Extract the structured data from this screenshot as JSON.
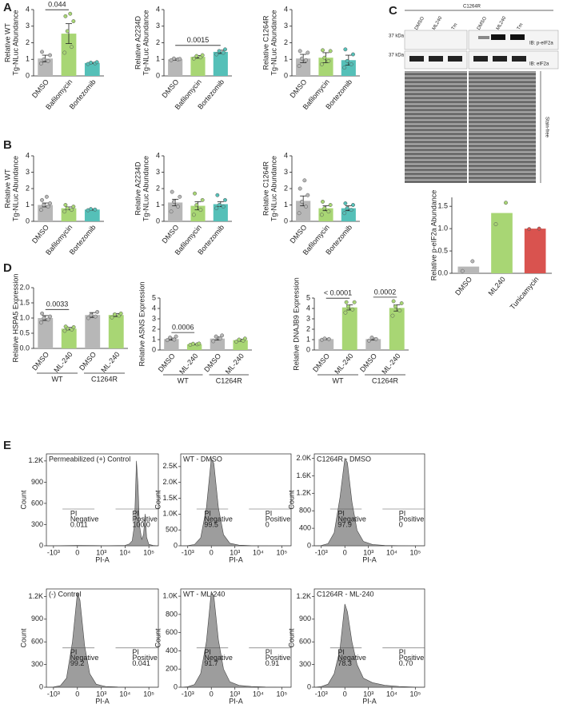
{
  "panel_labels": [
    "A",
    "B",
    "C",
    "D",
    "E"
  ],
  "blot": {
    "title": "C1264R",
    "lanes": [
      "DMSO",
      "ML240",
      "Tm",
      "DMSO",
      "ML240",
      "Tm"
    ],
    "markers": [
      "37 kDa",
      "37 kDa"
    ],
    "blots": [
      "IB: p-eIF2a",
      "IB: eIF2a"
    ],
    "stain": "Stain-free"
  },
  "chart_data": [
    {
      "type": "bar",
      "ylabel": [
        "Relative WT",
        "Tg-NLuc Abundance"
      ],
      "categories": [
        "DMSO",
        "Bafilomycin",
        "Bortezomib"
      ],
      "colors": [
        "#b7b7b7",
        "#a8d674",
        "#55c0b8"
      ],
      "values": [
        1.05,
        2.55,
        0.78
      ],
      "errors": [
        0.2,
        0.6,
        0.04
      ],
      "points": [
        [
          0.75,
          0.9,
          1.0,
          1.25,
          1.45
        ],
        [
          1.4,
          1.75,
          2.7,
          3.3,
          3.6,
          3.75
        ],
        [
          0.72,
          0.76,
          0.8,
          0.83
        ]
      ],
      "ylim": [
        0,
        4
      ],
      "yticks": [
        0,
        1,
        2,
        3,
        4
      ],
      "significance": [
        {
          "pair": [
            0,
            1
          ],
          "label": "0.044"
        }
      ]
    },
    {
      "type": "bar",
      "ylabel": [
        "Relative A2234D",
        "Tg-NLuc Abundance"
      ],
      "categories": [
        "DMSO",
        "Bafilomycin",
        "Bortezomib"
      ],
      "colors": [
        "#b7b7b7",
        "#a8d674",
        "#55c0b8"
      ],
      "values": [
        1.0,
        1.15,
        1.45
      ],
      "errors": [
        0.05,
        0.08,
        0.1
      ],
      "points": [
        [
          0.95,
          1.0,
          1.05,
          1.02
        ],
        [
          1.05,
          1.12,
          1.2,
          1.25
        ],
        [
          1.3,
          1.4,
          1.5,
          1.6
        ]
      ],
      "ylim": [
        0,
        4
      ],
      "yticks": [
        0,
        1,
        2,
        3,
        4
      ],
      "significance": [
        {
          "pair": [
            0,
            2
          ],
          "label": "0.0015"
        }
      ]
    },
    {
      "type": "bar",
      "ylabel": [
        "Relative C1264R",
        "Tg-NLuc Abundance"
      ],
      "categories": [
        "DMSO",
        "Bafilomycin",
        "Bortezomib"
      ],
      "colors": [
        "#b7b7b7",
        "#a8d674",
        "#55c0b8"
      ],
      "values": [
        1.05,
        1.1,
        0.95
      ],
      "errors": [
        0.25,
        0.3,
        0.3
      ],
      "points": [
        [
          0.6,
          0.95,
          1.05,
          1.4,
          1.5
        ],
        [
          0.7,
          0.9,
          1.1,
          1.5,
          1.55
        ],
        [
          0.5,
          0.7,
          0.9,
          1.3,
          1.6
        ]
      ],
      "ylim": [
        0,
        4
      ],
      "yticks": [
        0,
        1,
        2,
        3,
        4
      ]
    },
    {
      "type": "bar",
      "ylabel": [
        "Relative WT",
        "Tg-NLuc Abundance"
      ],
      "categories": [
        "DMSO",
        "Bafilomycin",
        "Bortezomib"
      ],
      "colors": [
        "#b7b7b7",
        "#a8d674",
        "#55c0b8"
      ],
      "values": [
        1.0,
        0.8,
        0.72
      ],
      "errors": [
        0.12,
        0.08,
        0.04
      ],
      "points": [
        [
          0.7,
          0.9,
          1.0,
          1.1,
          1.3,
          1.5
        ],
        [
          0.6,
          0.7,
          0.8,
          0.9,
          1.0
        ],
        [
          0.68,
          0.72,
          0.75
        ]
      ],
      "ylim": [
        0,
        4
      ],
      "yticks": [
        0,
        1,
        2,
        3,
        4
      ]
    },
    {
      "type": "bar",
      "ylabel": [
        "Relative A2234D",
        "Tg-NLuc Abundance"
      ],
      "categories": [
        "DMSO",
        "Bafilomycin",
        "Bortezomib"
      ],
      "colors": [
        "#b7b7b7",
        "#a8d674",
        "#55c0b8"
      ],
      "values": [
        1.15,
        0.95,
        1.05
      ],
      "errors": [
        0.2,
        0.25,
        0.15
      ],
      "points": [
        [
          0.6,
          0.9,
          1.2,
          1.5,
          1.8
        ],
        [
          0.4,
          0.7,
          1.0,
          1.3,
          1.7
        ],
        [
          0.8,
          0.9,
          1.0,
          1.3,
          1.6
        ]
      ],
      "ylim": [
        0,
        4
      ],
      "yticks": [
        0,
        1,
        2,
        3,
        4
      ]
    },
    {
      "type": "bar",
      "ylabel": [
        "Relative C1264R",
        "Tg-NLuc Abundance"
      ],
      "categories": [
        "DMSO",
        "Bafilomycin",
        "Bortezomib"
      ],
      "colors": [
        "#b7b7b7",
        "#a8d674",
        "#55c0b8"
      ],
      "values": [
        1.25,
        0.8,
        0.8
      ],
      "errors": [
        0.3,
        0.15,
        0.15
      ],
      "points": [
        [
          0.5,
          0.9,
          1.2,
          1.6,
          2.0,
          2.5
        ],
        [
          0.4,
          0.6,
          0.8,
          1.0,
          1.2
        ],
        [
          0.5,
          0.7,
          0.8,
          1.0,
          1.1
        ]
      ],
      "ylim": [
        0,
        4
      ],
      "yticks": [
        0,
        1,
        2,
        3,
        4
      ]
    },
    {
      "type": "bar",
      "ylabel": [
        "Relative p-eIF2a Abundance"
      ],
      "categories": [
        "DMSO",
        "ML240",
        "Tunicamycin"
      ],
      "colors": [
        "#b7b7b7",
        "#a8d674",
        "#d9534f"
      ],
      "values": [
        0.15,
        1.35,
        1.0
      ],
      "points": [
        [
          0.05,
          0.27
        ],
        [
          1.1,
          1.58
        ],
        [
          0.99,
          1.0
        ]
      ],
      "ylim": [
        0,
        1.7
      ],
      "yticks": [
        {
          "value": 0,
          "label": "0.0"
        },
        0.5,
        {
          "value": 1,
          "label": "1.0"
        },
        1.5
      ]
    },
    {
      "type": "bar",
      "ylabel": [
        "Relative HSPA5 Expression"
      ],
      "categories": [
        "DMSO",
        "ML-240",
        "DMSO",
        "ML-240"
      ],
      "groups": [
        "WT",
        "C1264R"
      ],
      "colors": [
        "#b7b7b7",
        "#a8d674",
        "#b7b7b7",
        "#a8d674"
      ],
      "values": [
        1.0,
        0.65,
        1.1,
        1.1
      ],
      "errors": [
        0.08,
        0.04,
        0.08,
        0.05
      ],
      "points": [
        [
          0.85,
          0.95,
          1.0,
          1.05,
          1.15
        ],
        [
          0.58,
          0.62,
          0.66,
          0.7,
          0.72
        ],
        [
          1.0,
          1.05,
          1.1,
          1.2
        ],
        [
          1.02,
          1.08,
          1.12,
          1.15
        ]
      ],
      "ylim": [
        0,
        2
      ],
      "yticks": [
        {
          "value": 0,
          "label": "0.0"
        },
        0.5,
        {
          "value": 1,
          "label": "1.0"
        },
        1.5,
        {
          "value": 2,
          "label": "2.0"
        }
      ],
      "significance": [
        {
          "pair": [
            0,
            1
          ],
          "label": "0.0033"
        }
      ]
    },
    {
      "type": "bar",
      "ylabel": [
        "Relative ASNS Expression"
      ],
      "categories": [
        "DMSO",
        "ML-240",
        "DMSO",
        "ML-240"
      ],
      "groups": [
        "WT",
        "C1264R"
      ],
      "colors": [
        "#b7b7b7",
        "#a8d674",
        "#b7b7b7",
        "#a8d674"
      ],
      "values": [
        1.05,
        0.55,
        1.1,
        0.95
      ],
      "errors": [
        0.1,
        0.05,
        0.15,
        0.1
      ],
      "points": [
        [
          0.95,
          1.0,
          1.2,
          1.3
        ],
        [
          0.5,
          0.55,
          0.6,
          0.62
        ],
        [
          0.85,
          1.1,
          1.3,
          1.4
        ],
        [
          0.8,
          0.9,
          1.0,
          1.1
        ]
      ],
      "ylim": [
        0,
        5
      ],
      "yticks": [
        0,
        1,
        2,
        3,
        4,
        5
      ],
      "significance": [
        {
          "pair": [
            0,
            1
          ],
          "label": "0.0006"
        }
      ]
    },
    {
      "type": "bar",
      "ylabel": [
        "Relative DNAJB9 Expression"
      ],
      "categories": [
        "DMSO",
        "ML-240",
        "DMSO",
        "ML-240"
      ],
      "groups": [
        "WT",
        "C1264R"
      ],
      "colors": [
        "#b7b7b7",
        "#a8d674",
        "#b7b7b7",
        "#a8d674"
      ],
      "values": [
        1.05,
        4.1,
        1.05,
        4.05
      ],
      "errors": [
        0.05,
        0.25,
        0.1,
        0.3
      ],
      "points": [
        [
          0.98,
          1.05,
          1.1
        ],
        [
          3.6,
          3.9,
          4.2,
          4.6,
          4.6
        ],
        [
          0.9,
          1.05,
          1.2
        ],
        [
          3.3,
          3.8,
          4.2,
          4.5,
          4.7
        ]
      ],
      "ylim": [
        0,
        5
      ],
      "yticks": [
        0,
        1,
        2,
        3,
        4,
        5
      ],
      "significance": [
        {
          "pair": [
            0,
            1
          ],
          "label": "< 0.0001"
        },
        {
          "pair": [
            2,
            3
          ],
          "label": "0.0002"
        }
      ]
    },
    {
      "type": "area",
      "title": "Permeabilized (+) Control",
      "xlabel": "PI-A",
      "ylabel": "Count",
      "xscale": "biexponential",
      "color": "#8c8c8c",
      "x": [
        -2000,
        -500,
        0,
        500,
        2000,
        5000,
        10000,
        15000,
        20000,
        25000,
        30000,
        35000,
        40000,
        50000,
        60000,
        70000,
        80000,
        100000,
        150000,
        250000
      ],
      "values": [
        0,
        2,
        6,
        3,
        2,
        3,
        6,
        25,
        70,
        300,
        1200,
        850,
        300,
        90,
        160,
        450,
        120,
        20,
        4,
        0
      ],
      "xlim": [
        -2000,
        250000
      ],
      "xticks": [
        {
          "value": -1000,
          "label": "-10³"
        },
        0,
        {
          "value": 1000,
          "label": "10³"
        },
        {
          "value": 10000,
          "label": "10⁴"
        },
        {
          "value": 100000,
          "label": "10⁵"
        }
      ],
      "ylim": [
        0,
        1300
      ],
      "yticks": [
        0,
        300,
        600,
        900,
        {
          "value": 1200,
          "label": "1.2K"
        }
      ],
      "gates": [
        {
          "name": [
            "PI",
            "Negative"
          ],
          "value": 0.011
        },
        {
          "name": [
            "PI",
            "Positive"
          ],
          "value": 100,
          "value_label": "100.0"
        }
      ]
    },
    {
      "type": "area",
      "title": "WT - DMSO",
      "xlabel": "PI-A",
      "ylabel": "Count",
      "xscale": "biexponential",
      "color": "#8c8c8c",
      "x": [
        -2000,
        -1000,
        -500,
        -250,
        -100,
        0,
        50,
        150,
        300,
        600,
        1500,
        5000,
        20000,
        100000,
        250000
      ],
      "values": [
        0,
        5,
        40,
        250,
        1200,
        2750,
        2600,
        1200,
        350,
        80,
        20,
        5,
        2,
        0,
        0
      ],
      "xlim": [
        -2000,
        250000
      ],
      "xticks": [
        {
          "value": -1000,
          "label": "-10³"
        },
        0,
        {
          "value": 1000,
          "label": "10³"
        },
        {
          "value": 10000,
          "label": "10⁴"
        },
        {
          "value": 100000,
          "label": "10⁵"
        }
      ],
      "ylim": [
        0,
        2900
      ],
      "yticks": [
        0,
        500,
        {
          "value": 1000,
          "label": "1.0K"
        },
        {
          "value": 1500,
          "label": "1.5K"
        },
        {
          "value": 2000,
          "label": "2.0K"
        },
        {
          "value": 2500,
          "label": "2.5K"
        }
      ],
      "gates": [
        {
          "name": [
            "PI",
            "Negative"
          ],
          "value": 99.5
        },
        {
          "name": [
            "PI",
            "Positive"
          ],
          "value": 0
        }
      ]
    },
    {
      "type": "area",
      "title": "C1264R - DMSO",
      "xlabel": "PI-A",
      "ylabel": "Count",
      "xscale": "biexponential",
      "color": "#8c8c8c",
      "x": [
        -2000,
        -1000,
        -500,
        -250,
        -100,
        0,
        50,
        150,
        300,
        600,
        1500,
        5000,
        20000,
        100000,
        250000
      ],
      "values": [
        0,
        5,
        50,
        300,
        1100,
        2000,
        1900,
        1000,
        350,
        100,
        30,
        8,
        3,
        0,
        0
      ],
      "xlim": [
        -2000,
        250000
      ],
      "xticks": [
        {
          "value": -1000,
          "label": "-10³"
        },
        0,
        {
          "value": 1000,
          "label": "10³"
        },
        {
          "value": 10000,
          "label": "10⁴"
        },
        {
          "value": 100000,
          "label": "10⁵"
        }
      ],
      "ylim": [
        0,
        2100
      ],
      "yticks": [
        0,
        400,
        800,
        {
          "value": 1200,
          "label": "1.2K"
        },
        {
          "value": 1600,
          "label": "1.6K"
        },
        {
          "value": 2000,
          "label": "2.0K"
        }
      ],
      "gates": [
        {
          "name": [
            "PI",
            "Negative"
          ],
          "value": 97.9
        },
        {
          "name": [
            "PI",
            "Positive"
          ],
          "value": 0
        }
      ]
    },
    {
      "type": "area",
      "title": "(-) Control",
      "xlabel": "PI-A",
      "ylabel": "Count",
      "xscale": "biexponential",
      "color": "#8c8c8c",
      "x": [
        -2000,
        -1000,
        -500,
        -250,
        -100,
        0,
        50,
        150,
        300,
        600,
        1500,
        5000,
        20000,
        100000,
        250000
      ],
      "values": [
        0,
        3,
        20,
        120,
        600,
        1250,
        1150,
        550,
        180,
        40,
        10,
        3,
        1,
        0,
        0
      ],
      "xlim": [
        -2000,
        250000
      ],
      "xticks": [
        {
          "value": -1000,
          "label": "-10³"
        },
        0,
        {
          "value": 1000,
          "label": "10³"
        },
        {
          "value": 10000,
          "label": "10⁴"
        },
        {
          "value": 100000,
          "label": "10⁵"
        }
      ],
      "ylim": [
        0,
        1300
      ],
      "yticks": [
        0,
        300,
        600,
        900,
        {
          "value": 1200,
          "label": "1.2K"
        }
      ],
      "gates": [
        {
          "name": [
            "PI",
            "Negative"
          ],
          "value": 99.2
        },
        {
          "name": [
            "PI",
            "Positive"
          ],
          "value": 0.041
        }
      ]
    },
    {
      "type": "area",
      "title": "WT - ML-240",
      "xlabel": "PI-A",
      "ylabel": "Count",
      "xscale": "biexponential",
      "color": "#8c8c8c",
      "x": [
        -2000,
        -1000,
        -500,
        -250,
        -100,
        0,
        50,
        150,
        300,
        600,
        1500,
        5000,
        20000,
        100000,
        250000
      ],
      "values": [
        0,
        5,
        30,
        150,
        500,
        1050,
        1000,
        520,
        200,
        60,
        20,
        8,
        3,
        1,
        0
      ],
      "xlim": [
        -2000,
        250000
      ],
      "xticks": [
        {
          "value": -1000,
          "label": "-10³"
        },
        0,
        {
          "value": 1000,
          "label": "10³"
        },
        {
          "value": 10000,
          "label": "10⁴"
        },
        {
          "value": 100000,
          "label": "10⁵"
        }
      ],
      "ylim": [
        0,
        1080
      ],
      "yticks": [
        0,
        200,
        400,
        600,
        800,
        {
          "value": 1000,
          "label": "1.0K"
        }
      ],
      "gates": [
        {
          "name": [
            "PI",
            "Negative"
          ],
          "value": 91.7
        },
        {
          "name": [
            "PI",
            "Positive"
          ],
          "value": 0.91
        }
      ]
    },
    {
      "type": "area",
      "title": "C1264R - ML-240",
      "xlabel": "PI-A",
      "ylabel": "Count",
      "xscale": "biexponential",
      "color": "#8c8c8c",
      "x": [
        -2000,
        -1000,
        -500,
        -250,
        -100,
        0,
        50,
        150,
        300,
        600,
        1500,
        5000,
        20000,
        100000,
        250000
      ],
      "values": [
        0,
        8,
        40,
        180,
        500,
        1100,
        1000,
        600,
        300,
        120,
        60,
        25,
        10,
        2,
        0
      ],
      "xlim": [
        -2000,
        250000
      ],
      "xticks": [
        {
          "value": -1000,
          "label": "-10³"
        },
        0,
        {
          "value": 1000,
          "label": "10³"
        },
        {
          "value": 10000,
          "label": "10⁴"
        },
        {
          "value": 100000,
          "label": "10⁵"
        }
      ],
      "ylim": [
        0,
        1300
      ],
      "yticks": [
        0,
        300,
        600,
        900,
        {
          "value": 1200,
          "label": "1.2K"
        }
      ],
      "gates": [
        {
          "name": [
            "PI",
            "Negative"
          ],
          "value": 78.3
        },
        {
          "name": [
            "PI",
            "Positive"
          ],
          "value": 0.7,
          "value_label": "0.70"
        }
      ]
    }
  ]
}
